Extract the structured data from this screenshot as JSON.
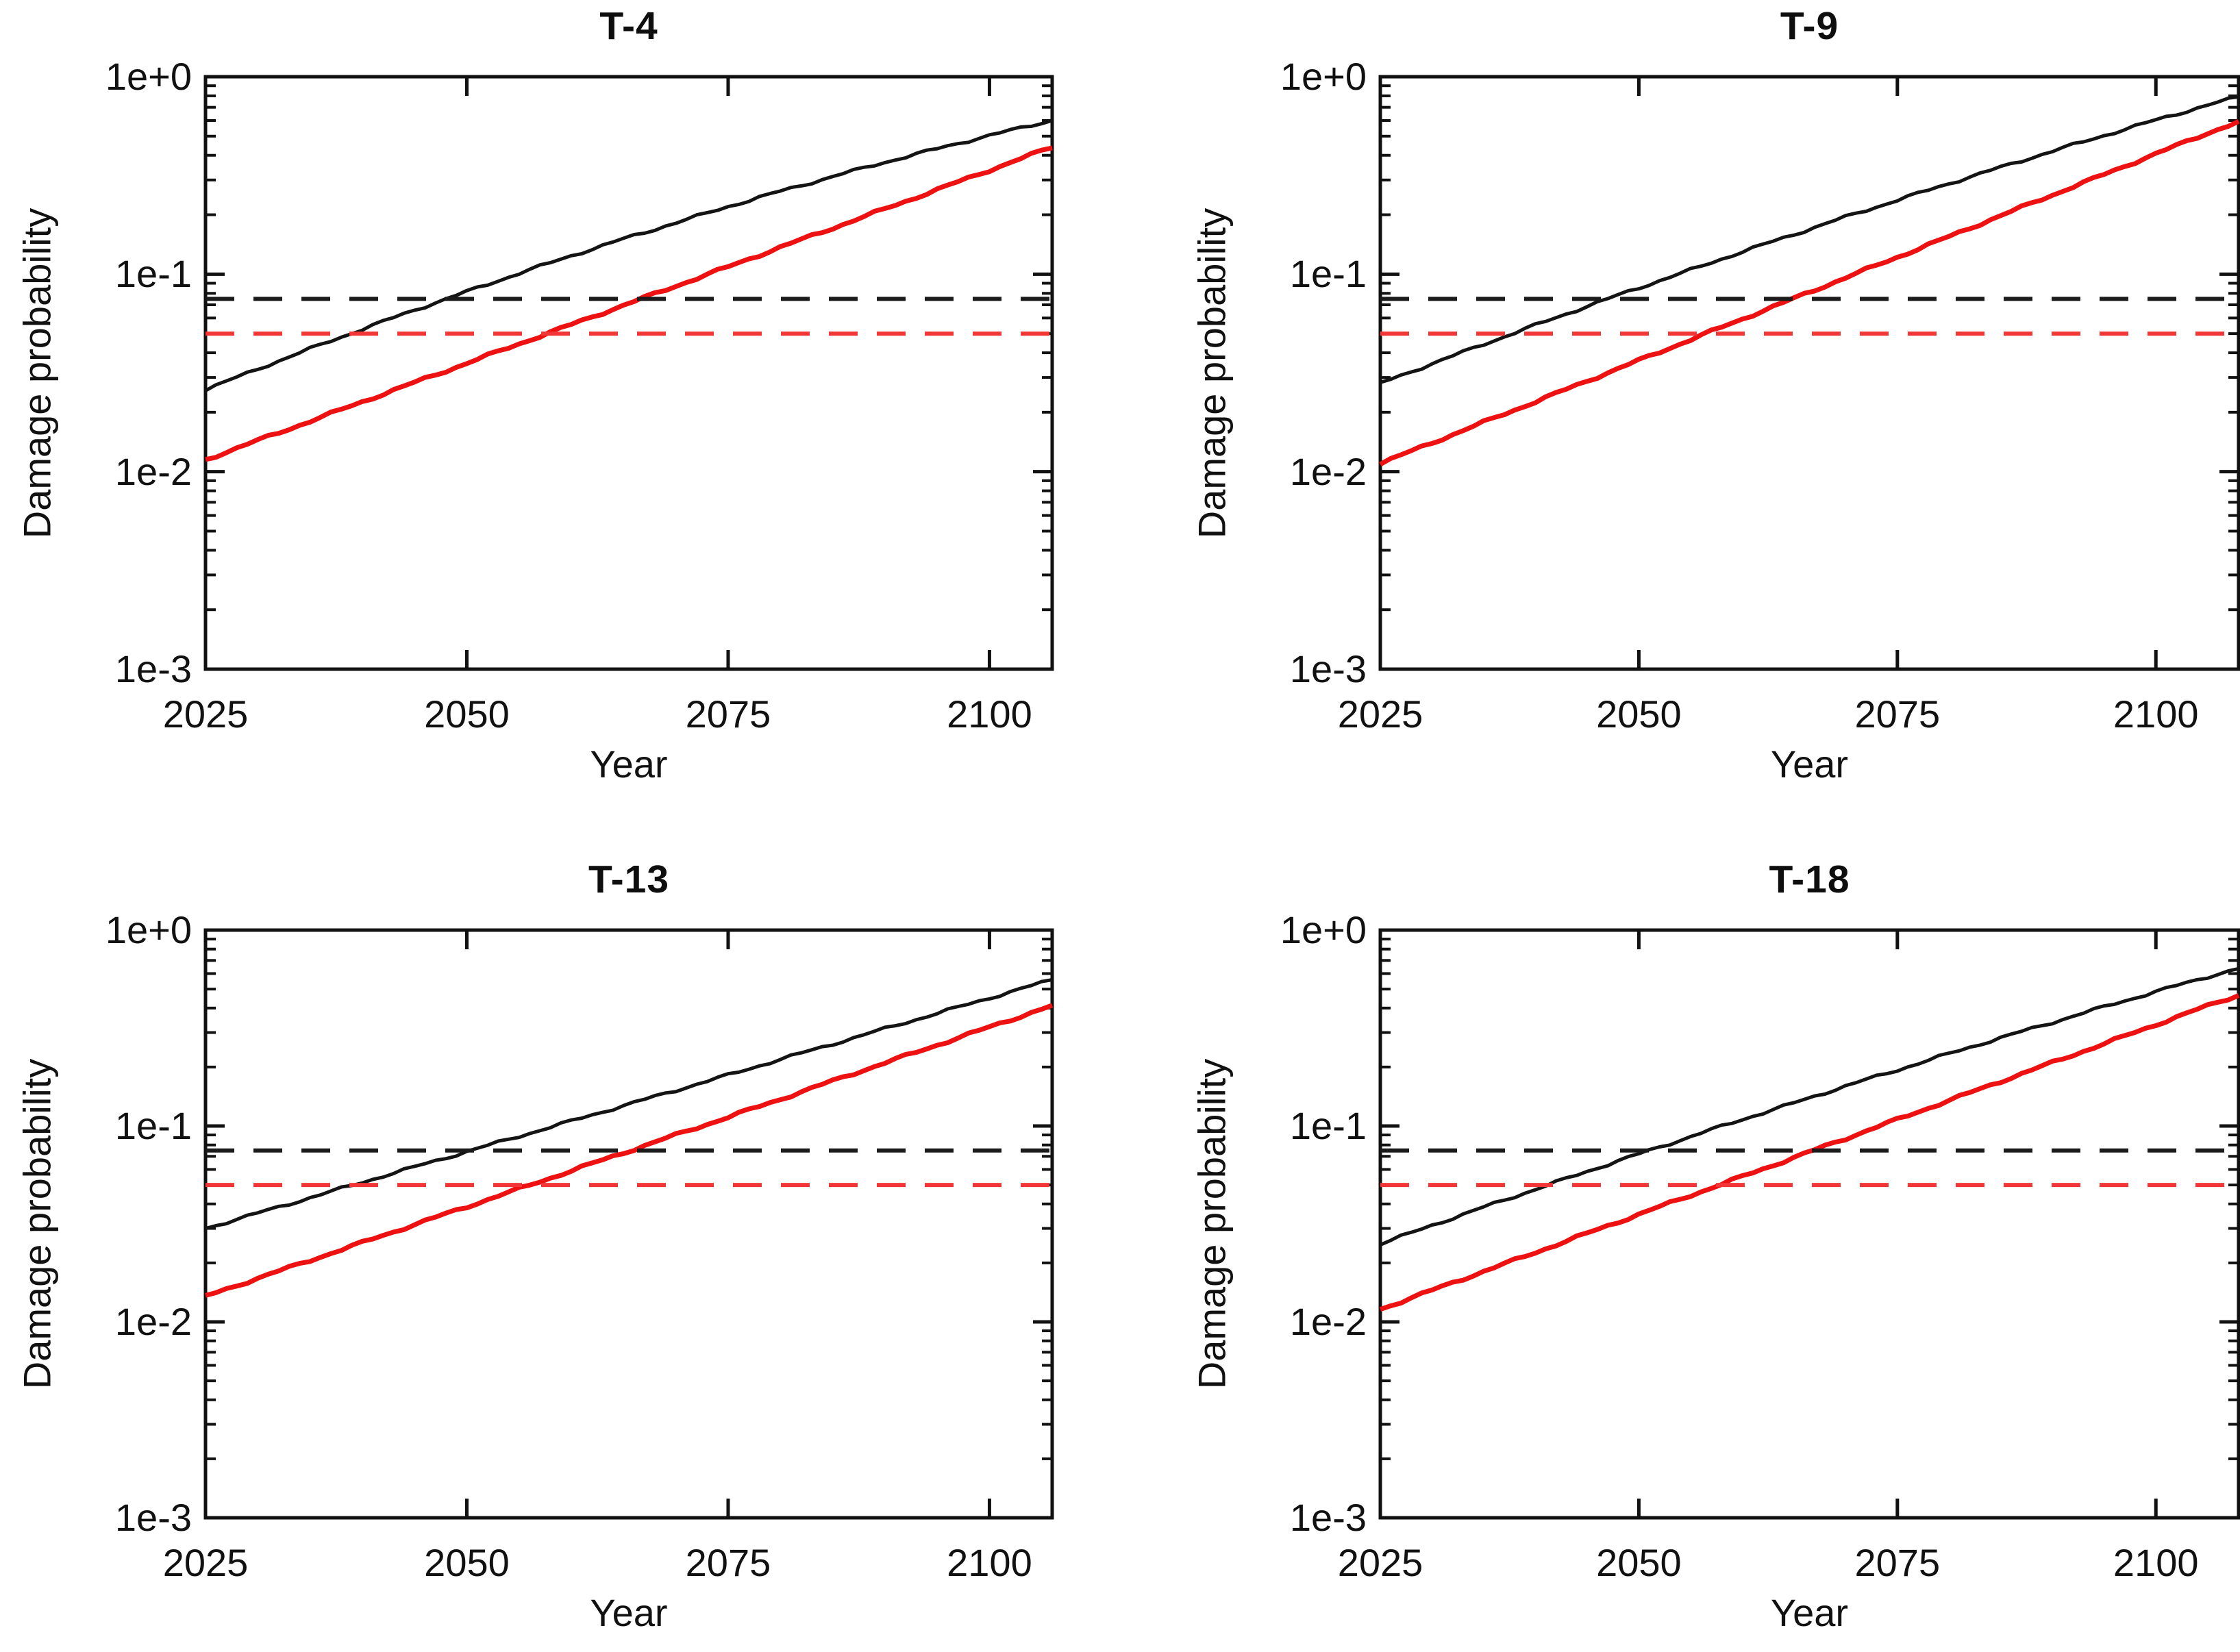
{
  "figure": {
    "background": "#ffffff",
    "curve_black": "#141414",
    "curve_red": "#ee1111",
    "threshold_black": "#1b1b1b",
    "threshold_red": "#f23535"
  },
  "chart_data": [
    {
      "type": "line",
      "title": "T-4",
      "xlabel": "Year",
      "ylabel": "Damage probability",
      "x_range": [
        2025,
        2106
      ],
      "y_range": [
        0.001,
        1
      ],
      "y_scale": "log",
      "grid": false,
      "legend": null,
      "x_ticks": [
        2025,
        2050,
        2075,
        2100
      ],
      "x_tick_labels": [
        "2025",
        "2050",
        "2075",
        "2100"
      ],
      "y_ticks": [
        1,
        0.1,
        0.01,
        0.001
      ],
      "y_tick_labels": [
        "1e+0",
        "1e-1",
        "1e-2",
        "1e-3"
      ],
      "series": [
        {
          "name": "black-projection",
          "style": "solid",
          "color": "#141414",
          "x": [
            2025,
            2030,
            2035,
            2040,
            2045,
            2050,
            2055,
            2060,
            2065,
            2070,
            2075,
            2080,
            2085,
            2090,
            2095,
            2100,
            2105,
            2107
          ],
          "y": [
            0.026,
            0.0331,
            0.0419,
            0.0527,
            0.0658,
            0.0816,
            0.101,
            0.124,
            0.151,
            0.182,
            0.22,
            0.263,
            0.312,
            0.369,
            0.432,
            0.504,
            0.584,
            0.619
          ]
        },
        {
          "name": "red-projection",
          "style": "solid",
          "color": "#ee1111",
          "x": [
            2025,
            2030,
            2035,
            2040,
            2045,
            2050,
            2055,
            2060,
            2065,
            2070,
            2075,
            2080,
            2085,
            2090,
            2095,
            2100,
            2105,
            2107
          ],
          "y": [
            0.0115,
            0.0144,
            0.018,
            0.0226,
            0.0283,
            0.0354,
            0.0444,
            0.0556,
            0.0696,
            0.0871,
            0.109,
            0.137,
            0.171,
            0.214,
            0.268,
            0.336,
            0.421,
            0.46
          ]
        },
        {
          "name": "black-threshold",
          "style": "dashed",
          "color": "#1b1b1b",
          "value": 0.075
        },
        {
          "name": "red-threshold",
          "style": "dashed",
          "color": "#f23535",
          "value": 0.05
        }
      ]
    },
    {
      "type": "line",
      "title": "T-9",
      "xlabel": "Year",
      "ylabel": "Damage probability",
      "x_range": [
        2025,
        2108
      ],
      "y_range": [
        0.001,
        1
      ],
      "y_scale": "log",
      "grid": false,
      "legend": null,
      "x_ticks": [
        2025,
        2050,
        2075,
        2100
      ],
      "x_tick_labels": [
        "2025",
        "2050",
        "2075",
        "2100"
      ],
      "y_ticks": [
        1,
        0.1,
        0.01,
        0.001
      ],
      "y_tick_labels": [
        "1e+0",
        "1e-1",
        "1e-2",
        "1e-3"
      ],
      "series": [
        {
          "name": "black-projection",
          "style": "solid",
          "color": "#141414",
          "x": [
            2025,
            2030,
            2035,
            2040,
            2045,
            2050,
            2055,
            2060,
            2065,
            2070,
            2075,
            2080,
            2085,
            2090,
            2095,
            2100,
            2105,
            2107
          ],
          "y": [
            0.028,
            0.0352,
            0.0442,
            0.0552,
            0.0688,
            0.0853,
            0.105,
            0.13,
            0.159,
            0.195,
            0.237,
            0.288,
            0.348,
            0.42,
            0.504,
            0.603,
            0.718,
            0.765
          ]
        },
        {
          "name": "red-projection",
          "style": "solid",
          "color": "#ee1111",
          "x": [
            2025,
            2030,
            2035,
            2040,
            2045,
            2050,
            2055,
            2060,
            2065,
            2070,
            2075,
            2080,
            2085,
            2090,
            2095,
            2100,
            2105,
            2107
          ],
          "y": [
            0.011,
            0.014,
            0.0178,
            0.0226,
            0.0288,
            0.0366,
            0.0466,
            0.0593,
            0.0754,
            0.096,
            0.122,
            0.155,
            0.198,
            0.252,
            0.32,
            0.407,
            0.518,
            0.565
          ]
        },
        {
          "name": "black-threshold",
          "style": "dashed",
          "color": "#1b1b1b",
          "value": 0.075
        },
        {
          "name": "red-threshold",
          "style": "dashed",
          "color": "#f23535",
          "value": 0.05
        }
      ]
    },
    {
      "type": "line",
      "title": "T-13",
      "xlabel": "Year",
      "ylabel": "Damage probability",
      "x_range": [
        2025,
        2106
      ],
      "y_range": [
        0.001,
        1
      ],
      "y_scale": "log",
      "grid": false,
      "legend": null,
      "x_ticks": [
        2025,
        2050,
        2075,
        2100
      ],
      "x_tick_labels": [
        "2025",
        "2050",
        "2075",
        "2100"
      ],
      "y_ticks": [
        1,
        0.1,
        0.01,
        0.001
      ],
      "y_tick_labels": [
        "1e+0",
        "1e-1",
        "1e-2",
        "1e-3"
      ],
      "series": [
        {
          "name": "black-projection",
          "style": "solid",
          "color": "#141414",
          "x": [
            2025,
            2030,
            2035,
            2040,
            2045,
            2050,
            2055,
            2060,
            2065,
            2070,
            2075,
            2080,
            2085,
            2090,
            2095,
            2100,
            2105,
            2107
          ],
          "y": [
            0.03,
            0.0359,
            0.043,
            0.0516,
            0.0618,
            0.074,
            0.0886,
            0.106,
            0.127,
            0.152,
            0.182,
            0.219,
            0.262,
            0.314,
            0.376,
            0.45,
            0.539,
            0.576
          ]
        },
        {
          "name": "red-projection",
          "style": "solid",
          "color": "#ee1111",
          "x": [
            2025,
            2030,
            2035,
            2040,
            2045,
            2050,
            2055,
            2060,
            2065,
            2070,
            2075,
            2080,
            2085,
            2090,
            2095,
            2100,
            2105,
            2107
          ],
          "y": [
            0.0135,
            0.0167,
            0.0206,
            0.0254,
            0.0314,
            0.0387,
            0.0478,
            0.0591,
            0.073,
            0.0901,
            0.111,
            0.137,
            0.17,
            0.21,
            0.259,
            0.32,
            0.395,
            0.427
          ]
        },
        {
          "name": "black-threshold",
          "style": "dashed",
          "color": "#1b1b1b",
          "value": 0.075
        },
        {
          "name": "red-threshold",
          "style": "dashed",
          "color": "#f23535",
          "value": 0.05
        }
      ]
    },
    {
      "type": "line",
      "title": "T-18",
      "xlabel": "Year",
      "ylabel": "Damage probability",
      "x_range": [
        2025,
        2108
      ],
      "y_range": [
        0.001,
        1
      ],
      "y_scale": "log",
      "grid": false,
      "legend": null,
      "x_ticks": [
        2025,
        2050,
        2075,
        2100
      ],
      "x_tick_labels": [
        "2025",
        "2050",
        "2075",
        "2100"
      ],
      "y_ticks": [
        1,
        0.1,
        0.01,
        0.001
      ],
      "y_tick_labels": [
        "1e+0",
        "1e-1",
        "1e-2",
        "1e-3"
      ],
      "series": [
        {
          "name": "black-projection",
          "style": "solid",
          "color": "#141414",
          "x": [
            2025,
            2030,
            2035,
            2040,
            2045,
            2050,
            2055,
            2060,
            2065,
            2070,
            2075,
            2080,
            2085,
            2090,
            2095,
            2100,
            2105,
            2107
          ],
          "y": [
            0.025,
            0.0311,
            0.0385,
            0.0475,
            0.0586,
            0.072,
            0.0882,
            0.108,
            0.131,
            0.16,
            0.193,
            0.234,
            0.282,
            0.338,
            0.406,
            0.485,
            0.578,
            0.616
          ]
        },
        {
          "name": "red-projection",
          "style": "solid",
          "color": "#ee1111",
          "x": [
            2025,
            2030,
            2035,
            2040,
            2045,
            2050,
            2055,
            2060,
            2065,
            2070,
            2075,
            2080,
            2085,
            2090,
            2095,
            2100,
            2105,
            2107
          ],
          "y": [
            0.0116,
            0.0145,
            0.0181,
            0.0226,
            0.0283,
            0.0354,
            0.0442,
            0.0552,
            0.069,
            0.0863,
            0.108,
            0.135,
            0.169,
            0.211,
            0.263,
            0.329,
            0.411,
            0.447
          ]
        },
        {
          "name": "black-threshold",
          "style": "dashed",
          "color": "#1b1b1b",
          "value": 0.075
        },
        {
          "name": "red-threshold",
          "style": "dashed",
          "color": "#f23535",
          "value": 0.05
        }
      ]
    }
  ]
}
